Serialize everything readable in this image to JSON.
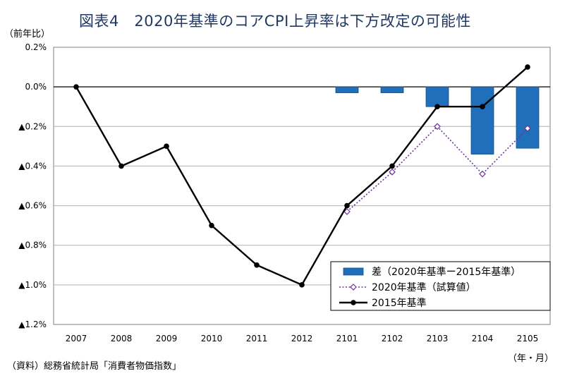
{
  "title": "図表4　2020年基準のコアCPI上昇率は下方改定の可能性",
  "y_unit_label": "（前年比）",
  "x_unit_label": "（年・月）",
  "source": "（資料）総務省統計局「消費者物価指数」",
  "chart_data": {
    "type": "bar+line",
    "categories": [
      "2007",
      "2008",
      "2009",
      "2010",
      "2011",
      "2012",
      "2101",
      "2102",
      "2103",
      "2104",
      "2105"
    ],
    "ylim": [
      -1.2,
      0.2
    ],
    "y_ticks": [
      {
        "value": 0.2,
        "label": "0.2%"
      },
      {
        "value": 0.0,
        "label": "0.0%"
      },
      {
        "value": -0.2,
        "label": "▲0.2%"
      },
      {
        "value": -0.4,
        "label": "▲0.4%"
      },
      {
        "value": -0.6,
        "label": "▲0.6%"
      },
      {
        "value": -0.8,
        "label": "▲0.8%"
      },
      {
        "value": -1.0,
        "label": "▲1.0%"
      },
      {
        "value": -1.2,
        "label": "▲1.2%"
      }
    ],
    "grid": true,
    "legend_position": "bottom-right",
    "series": [
      {
        "name": "差（2020年基準ー2015年基準）",
        "type": "bar",
        "color": "#1f6fba",
        "values": [
          null,
          null,
          null,
          null,
          null,
          null,
          -0.03,
          -0.03,
          -0.1,
          -0.34,
          -0.31
        ]
      },
      {
        "name": "2020年基準（試算値）",
        "type": "line-dotted-diamond",
        "color": "#7030a0",
        "values": [
          null,
          null,
          null,
          null,
          null,
          null,
          -0.63,
          -0.43,
          -0.2,
          -0.44,
          -0.21
        ]
      },
      {
        "name": "2015年基準",
        "type": "line-dot",
        "color": "#000000",
        "values": [
          0.0,
          -0.4,
          -0.3,
          -0.7,
          -0.9,
          -1.0,
          -0.6,
          -0.4,
          -0.1,
          -0.1,
          0.1
        ]
      }
    ]
  }
}
